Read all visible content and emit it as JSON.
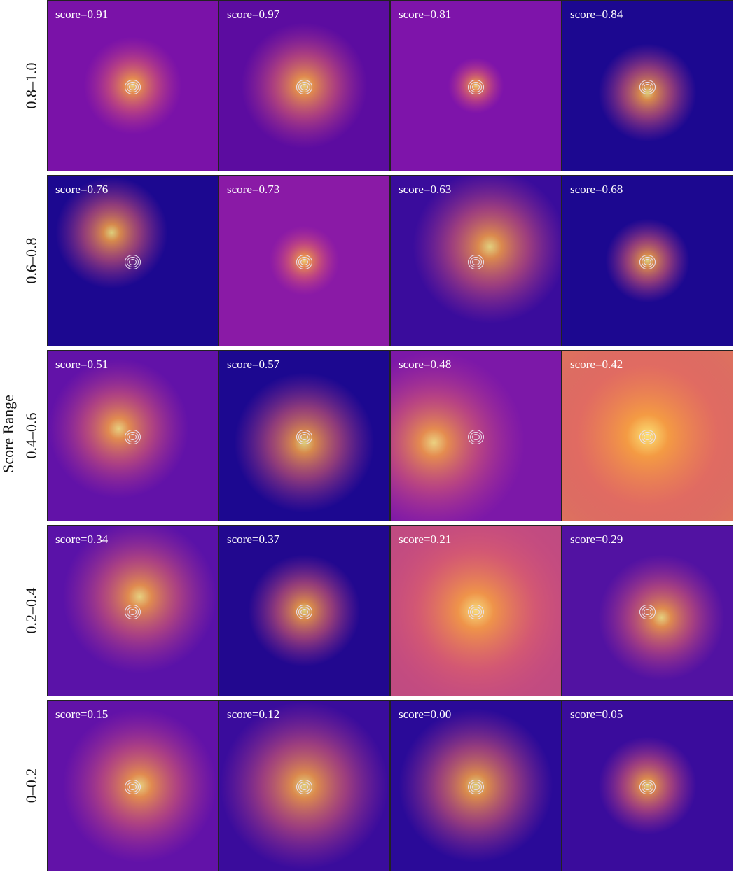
{
  "y_label": "Score Range",
  "rows": [
    {
      "label": "0.8–1.0",
      "panels": [
        "score=0.91",
        "score=0.97",
        "score=0.81",
        "score=0.84"
      ]
    },
    {
      "label": "0.6–0.8",
      "panels": [
        "score=0.76",
        "score=0.73",
        "score=0.63",
        "score=0.68"
      ]
    },
    {
      "label": "0.4–0.6",
      "panels": [
        "score=0.51",
        "score=0.57",
        "score=0.48",
        "score=0.42"
      ]
    },
    {
      "label": "0.2–0.4",
      "panels": [
        "score=0.34",
        "score=0.37",
        "score=0.21",
        "score=0.29"
      ]
    },
    {
      "label": "0–0.2",
      "panels": [
        "score=0.15",
        "score=0.12",
        "score=0.00",
        "score=0.05"
      ]
    }
  ]
}
